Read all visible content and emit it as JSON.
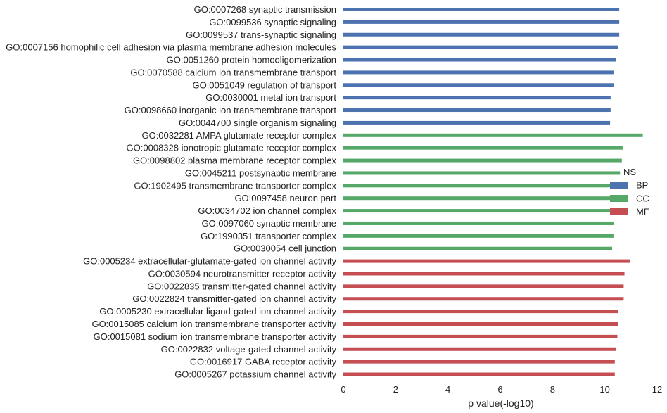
{
  "chart_data": {
    "type": "bar",
    "orientation": "horizontal",
    "xlabel": "p value(-log10)",
    "ylabel": "",
    "xlim": [
      0,
      12
    ],
    "xticks": [
      0,
      2,
      4,
      6,
      8,
      10,
      12
    ],
    "grid": false,
    "legend": {
      "title": "NS",
      "placement": "right"
    },
    "series": [
      {
        "name": "BP",
        "color": "#4c72b0",
        "categories": [
          "GO:0007268 synaptic transmission",
          "GO:0099536 synaptic signaling",
          "GO:0099537 trans-synaptic signaling",
          "GO:0007156 homophilic cell adhesion via plasma membrane adhesion molecules",
          "GO:0051260 protein homooligomerization",
          "GO:0070588 calcium ion transmembrane transport",
          "GO:0051049 regulation of transport",
          "GO:0030001 metal ion transport",
          "GO:0098660 inorganic ion transmembrane transport",
          "GO:0044700 single organism signaling"
        ],
        "values": [
          10.55,
          10.55,
          10.55,
          10.52,
          10.42,
          10.33,
          10.33,
          10.22,
          10.22,
          10.2
        ]
      },
      {
        "name": "CC",
        "color": "#55a868",
        "categories": [
          "GO:0032281 AMPA glutamate receptor complex",
          "GO:0008328 ionotropic glutamate receptor complex",
          "GO:0098802 plasma membrane receptor complex",
          "GO:0045211 postsynaptic membrane",
          "GO:1902495 transmembrane transporter complex",
          "GO:0097458 neuron part",
          "GO:0034702 ion channel complex",
          "GO:0097060 synaptic membrane",
          "GO:1990351 transporter complex",
          "GO:0030054 cell junction"
        ],
        "values": [
          11.45,
          10.68,
          10.65,
          10.58,
          10.5,
          10.45,
          10.4,
          10.35,
          10.33,
          10.28
        ]
      },
      {
        "name": "MF",
        "color": "#c44e52",
        "categories": [
          "GO:0005234 extracellular-glutamate-gated ion channel activity",
          "GO:0030594 neurotransmitter receptor activity",
          "GO:0022835 transmitter-gated channel activity",
          "GO:0022824 transmitter-gated ion channel activity",
          "GO:0005230 extracellular ligand-gated ion channel activity",
          "GO:0015085 calcium ion transmembrane transporter activity",
          "GO:0015081 sodium ion transmembrane transporter activity",
          "GO:0022832 voltage-gated channel activity",
          "GO:0016917 GABA receptor activity",
          "GO:0005267 potassium channel activity"
        ],
        "values": [
          10.95,
          10.75,
          10.72,
          10.72,
          10.52,
          10.5,
          10.48,
          10.42,
          10.38,
          10.38
        ]
      }
    ]
  }
}
